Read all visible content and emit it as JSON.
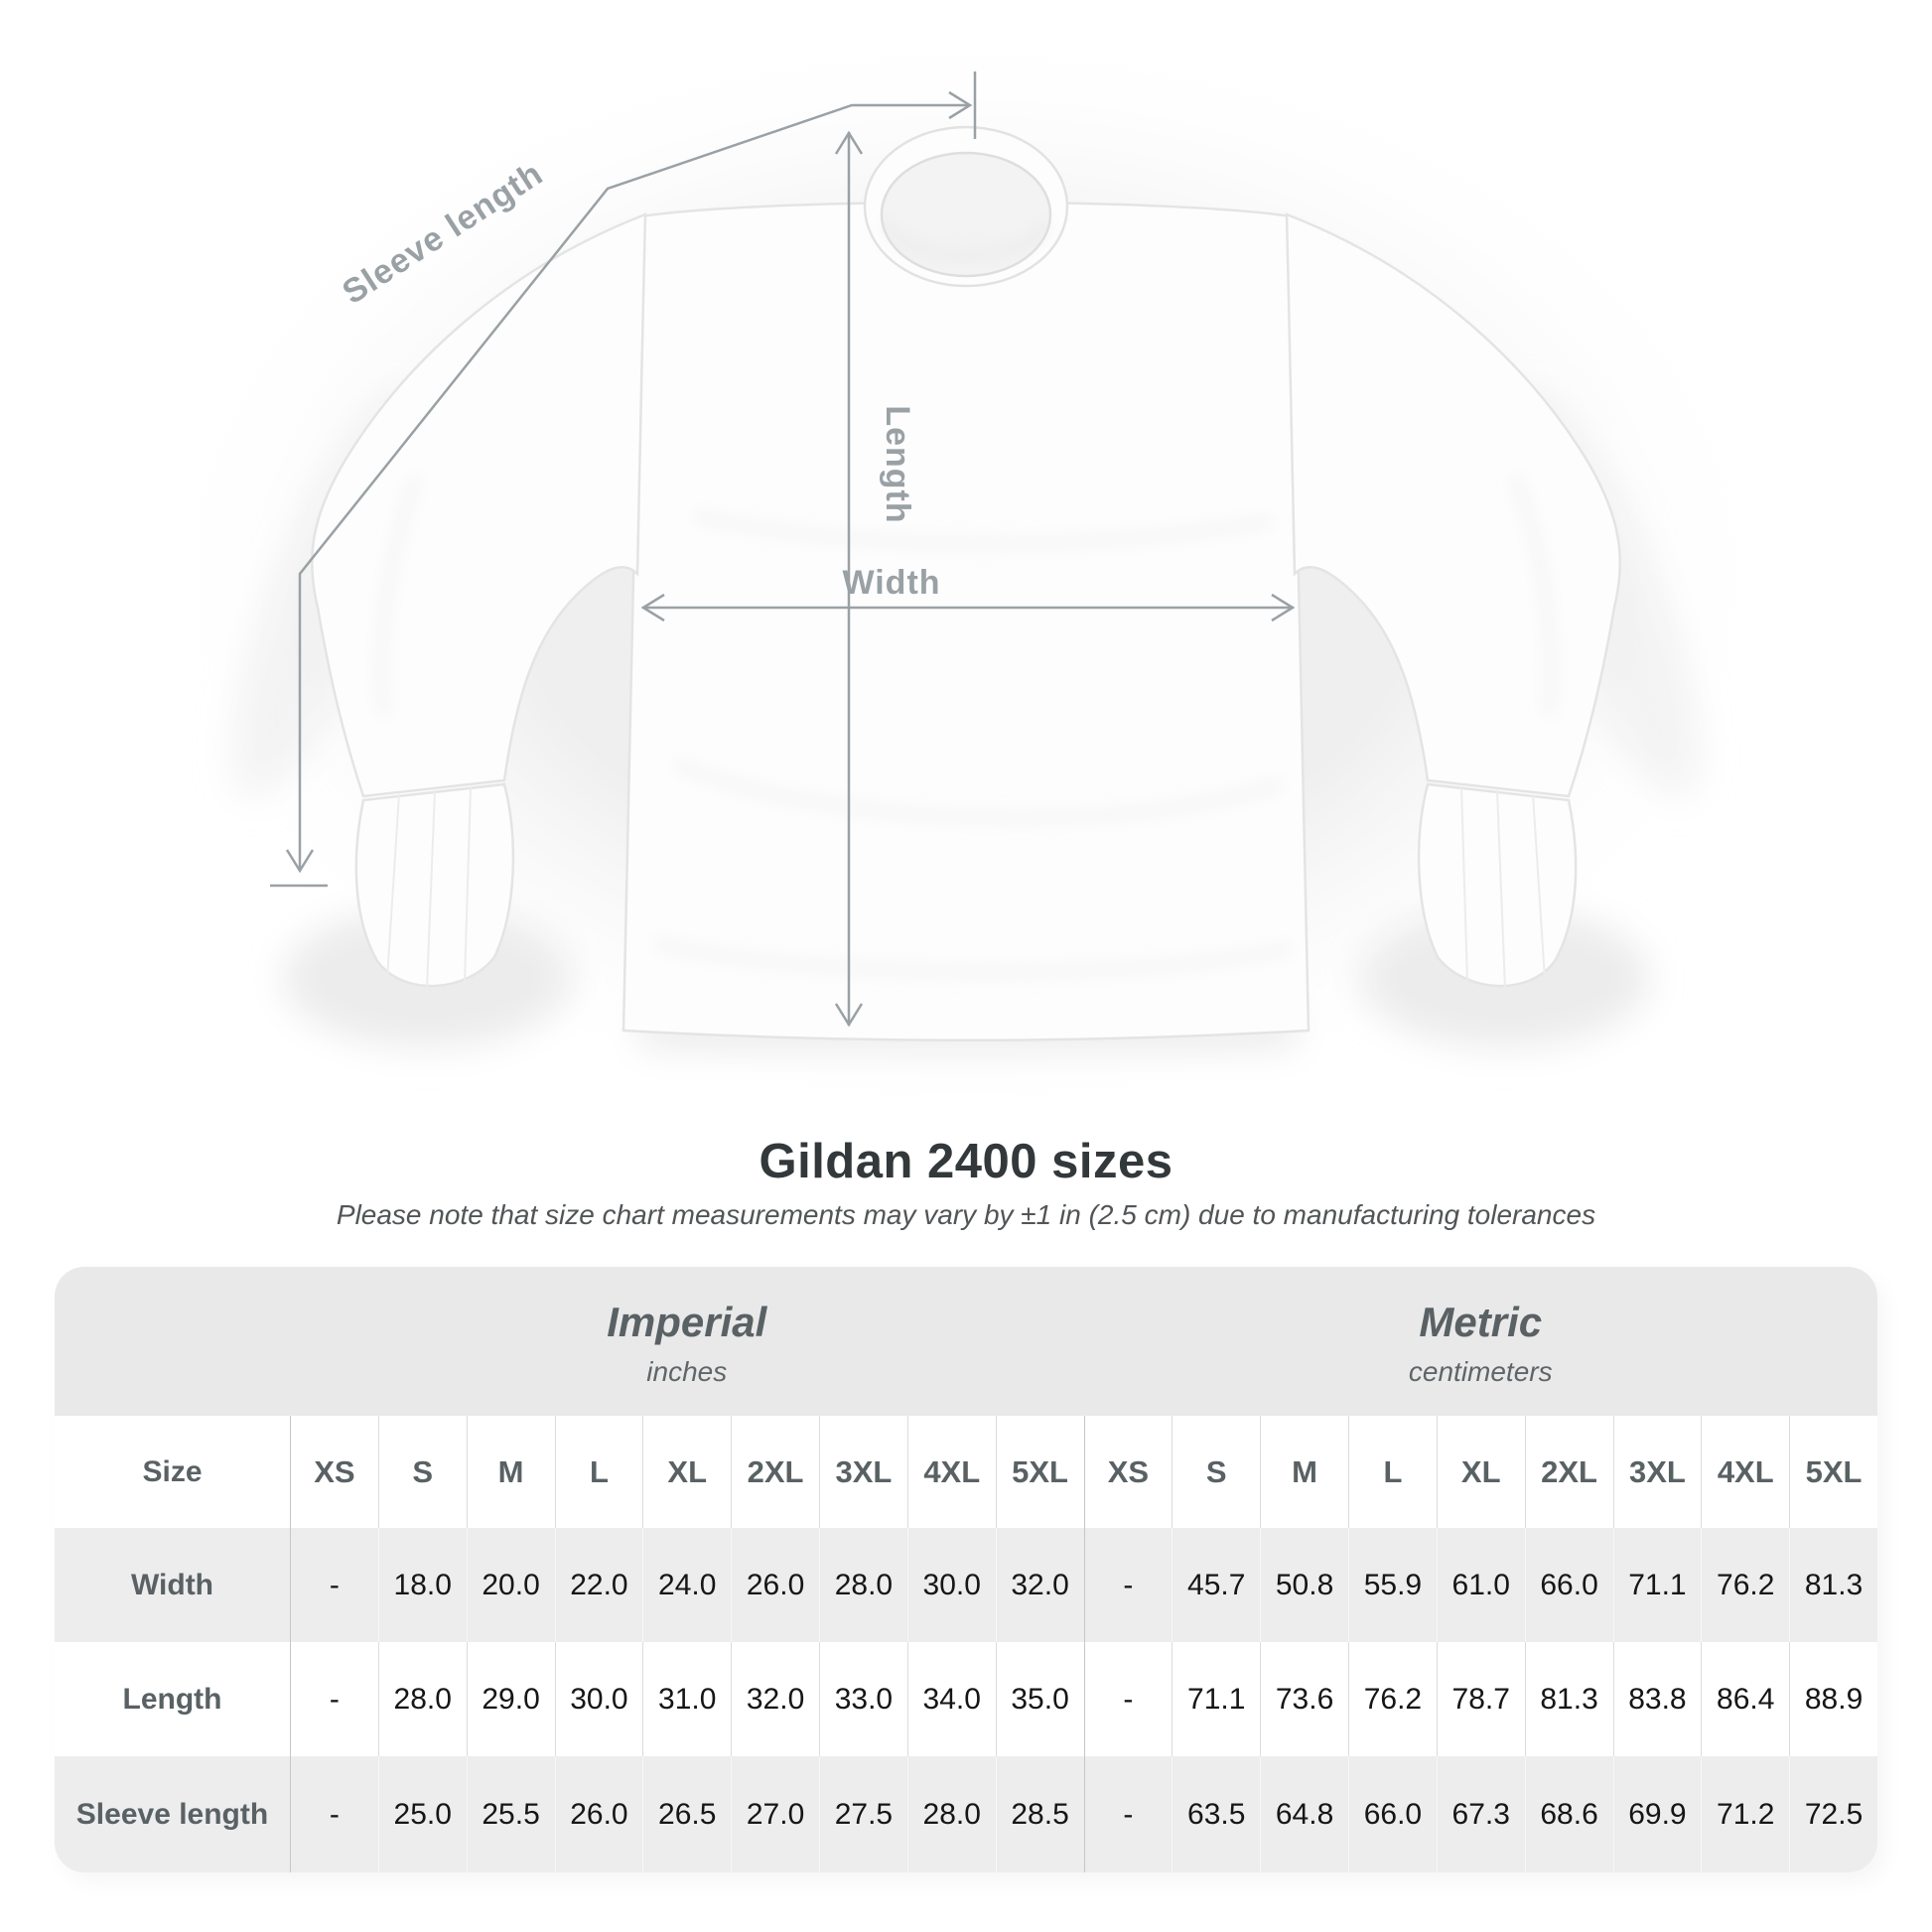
{
  "chart_data": {
    "type": "table",
    "title": "Gildan 2400 sizes",
    "note": "Please note that size chart measurements may vary by ±1 in (2.5 cm) due to manufacturing tolerances",
    "diagram_labels": {
      "sleeve": "Sleeve length",
      "length": "Length",
      "width": "Width"
    },
    "unit_groups": [
      {
        "label": "Imperial",
        "sublabel": "inches"
      },
      {
        "label": "Metric",
        "sublabel": "centimeters"
      }
    ],
    "size_header_label": "Size",
    "sizes": [
      "XS",
      "S",
      "M",
      "L",
      "XL",
      "2XL",
      "3XL",
      "4XL",
      "5XL"
    ],
    "rows": [
      {
        "label": "Width",
        "imperial": [
          "-",
          "18.0",
          "20.0",
          "22.0",
          "24.0",
          "26.0",
          "28.0",
          "30.0",
          "32.0"
        ],
        "metric": [
          "-",
          "45.7",
          "50.8",
          "55.9",
          "61.0",
          "66.0",
          "71.1",
          "76.2",
          "81.3"
        ]
      },
      {
        "label": "Length",
        "imperial": [
          "-",
          "28.0",
          "29.0",
          "30.0",
          "31.0",
          "32.0",
          "33.0",
          "34.0",
          "35.0"
        ],
        "metric": [
          "-",
          "71.1",
          "73.6",
          "76.2",
          "78.7",
          "81.3",
          "83.8",
          "86.4",
          "88.9"
        ]
      },
      {
        "label": "Sleeve length",
        "imperial": [
          "-",
          "25.0",
          "25.5",
          "26.0",
          "26.5",
          "27.0",
          "27.5",
          "28.0",
          "28.5"
        ],
        "metric": [
          "-",
          "63.5",
          "64.8",
          "66.0",
          "67.3",
          "68.6",
          "69.9",
          "71.2",
          "72.5"
        ]
      }
    ]
  },
  "colors": {
    "annotation_gray": "#9aa1a5",
    "band_gray": "#e9e9e9",
    "zebra_gray": "#ededed",
    "heading_text": "#5a6164",
    "number_text": "#161616",
    "title_text": "#33383b"
  }
}
